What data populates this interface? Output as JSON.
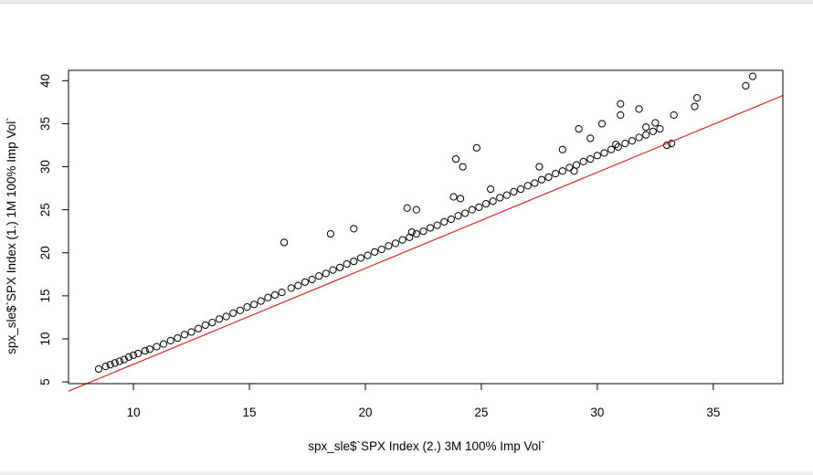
{
  "chart_data": {
    "type": "scatter",
    "title": "",
    "xlabel": "spx_sle$`SPX Index (2.) 3M 100% Imp Vol`",
    "ylabel": "spx_sle$`SPX Index (1.) 1M 100% Imp Vol`",
    "xlim": [
      7.2,
      38.0
    ],
    "ylim": [
      4.8,
      41.2
    ],
    "x_ticks": [
      10,
      15,
      20,
      25,
      30,
      35
    ],
    "y_ticks": [
      5,
      10,
      15,
      20,
      25,
      30,
      35,
      40
    ],
    "grid": false,
    "legend": "none",
    "point_style": "open circle",
    "point_color": "#000000",
    "regression_line": {
      "color": "#d62728",
      "intercept": -4.1,
      "slope": 1.115
    },
    "series": [
      {
        "values": [
          [
            8.5,
            6.5
          ],
          [
            8.8,
            6.8
          ],
          [
            9.0,
            7.0
          ],
          [
            9.2,
            7.2
          ],
          [
            9.4,
            7.4
          ],
          [
            9.6,
            7.6
          ],
          [
            9.8,
            7.9
          ],
          [
            10.0,
            8.1
          ],
          [
            10.2,
            8.3
          ],
          [
            10.5,
            8.6
          ],
          [
            10.7,
            8.8
          ],
          [
            11.0,
            9.1
          ],
          [
            11.3,
            9.4
          ],
          [
            11.6,
            9.8
          ],
          [
            11.9,
            10.1
          ],
          [
            12.2,
            10.5
          ],
          [
            12.5,
            10.8
          ],
          [
            12.8,
            11.2
          ],
          [
            13.1,
            11.6
          ],
          [
            13.4,
            11.9
          ],
          [
            13.7,
            12.3
          ],
          [
            14.0,
            12.6
          ],
          [
            14.3,
            13.0
          ],
          [
            14.6,
            13.3
          ],
          [
            14.9,
            13.7
          ],
          [
            15.2,
            14.0
          ],
          [
            15.5,
            14.4
          ],
          [
            15.8,
            14.8
          ],
          [
            16.1,
            15.1
          ],
          [
            16.4,
            15.4
          ],
          [
            16.5,
            21.2
          ],
          [
            16.8,
            15.9
          ],
          [
            17.1,
            16.2
          ],
          [
            17.4,
            16.6
          ],
          [
            17.7,
            16.9
          ],
          [
            18.0,
            17.3
          ],
          [
            18.3,
            17.6
          ],
          [
            18.6,
            18.0
          ],
          [
            18.9,
            18.3
          ],
          [
            19.2,
            18.7
          ],
          [
            19.5,
            19.0
          ],
          [
            19.8,
            19.4
          ],
          [
            20.1,
            19.7
          ],
          [
            20.4,
            20.1
          ],
          [
            20.7,
            20.4
          ],
          [
            21.0,
            20.8
          ],
          [
            21.3,
            21.1
          ],
          [
            21.6,
            21.5
          ],
          [
            21.9,
            21.8
          ],
          [
            22.2,
            22.2
          ],
          [
            22.5,
            22.5
          ],
          [
            22.8,
            22.9
          ],
          [
            23.1,
            23.2
          ],
          [
            23.4,
            23.6
          ],
          [
            23.7,
            23.9
          ],
          [
            24.0,
            24.3
          ],
          [
            24.3,
            24.6
          ],
          [
            24.6,
            25.0
          ],
          [
            24.9,
            25.3
          ],
          [
            25.2,
            25.7
          ],
          [
            25.5,
            26.0
          ],
          [
            25.8,
            26.4
          ],
          [
            26.1,
            26.7
          ],
          [
            26.4,
            27.1
          ],
          [
            26.7,
            27.4
          ],
          [
            27.0,
            27.8
          ],
          [
            27.3,
            28.1
          ],
          [
            27.6,
            28.5
          ],
          [
            27.9,
            28.8
          ],
          [
            28.2,
            29.2
          ],
          [
            28.5,
            29.5
          ],
          [
            28.8,
            29.9
          ],
          [
            29.1,
            30.2
          ],
          [
            29.4,
            30.6
          ],
          [
            29.7,
            30.9
          ],
          [
            30.0,
            31.3
          ],
          [
            30.3,
            31.6
          ],
          [
            30.6,
            32.0
          ],
          [
            30.9,
            32.3
          ],
          [
            31.2,
            32.7
          ],
          [
            31.5,
            33.0
          ],
          [
            31.8,
            33.4
          ],
          [
            32.1,
            33.7
          ],
          [
            32.4,
            34.1
          ],
          [
            32.7,
            34.4
          ],
          [
            33.0,
            32.5
          ],
          [
            33.3,
            36.0
          ],
          [
            34.2,
            37.0
          ],
          [
            34.3,
            38.0
          ],
          [
            36.4,
            39.4
          ],
          [
            36.7,
            40.5
          ],
          [
            24.2,
            30.0
          ],
          [
            23.9,
            30.9
          ],
          [
            24.8,
            32.2
          ],
          [
            29.2,
            34.4
          ],
          [
            29.7,
            33.3
          ],
          [
            30.2,
            35.0
          ],
          [
            31.0,
            36.0
          ],
          [
            31.0,
            37.3
          ],
          [
            31.8,
            36.7
          ],
          [
            32.1,
            34.6
          ],
          [
            32.5,
            35.1
          ],
          [
            21.8,
            25.2
          ],
          [
            22.2,
            25.0
          ],
          [
            23.8,
            26.5
          ],
          [
            24.1,
            26.3
          ],
          [
            18.5,
            22.2
          ],
          [
            19.5,
            22.8
          ],
          [
            22.0,
            22.4
          ],
          [
            25.4,
            27.4
          ],
          [
            27.5,
            30.0
          ],
          [
            28.5,
            32.0
          ],
          [
            29.0,
            29.5
          ],
          [
            30.8,
            32.6
          ],
          [
            33.2,
            32.7
          ]
        ]
      }
    ]
  }
}
